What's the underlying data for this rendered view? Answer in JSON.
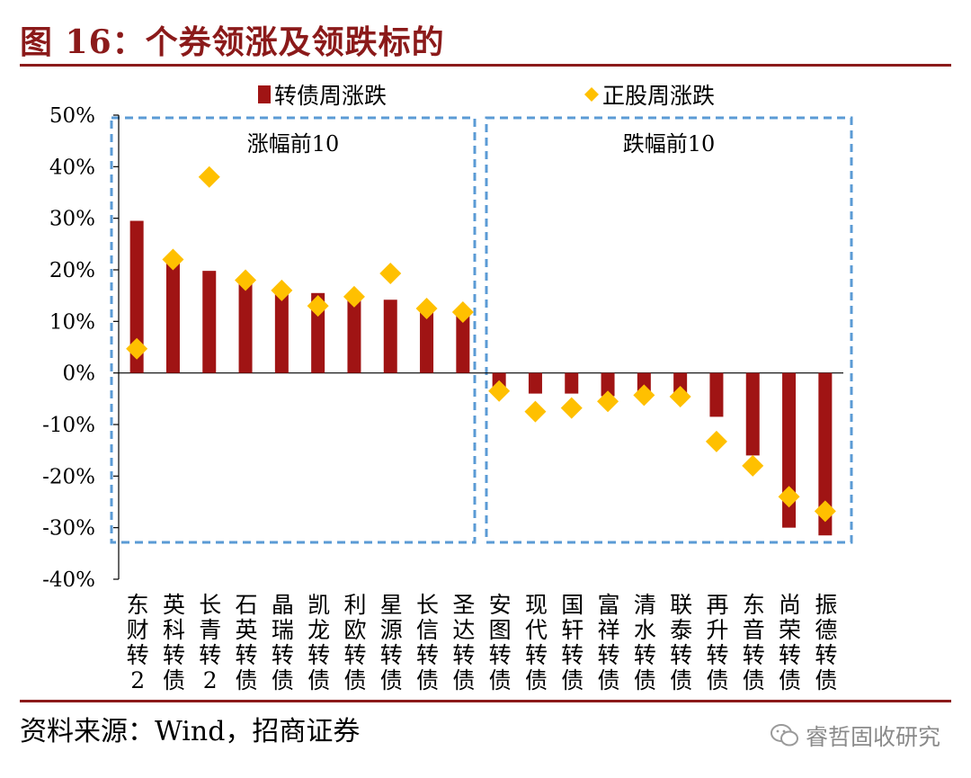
{
  "figure": {
    "title": "图 16：个券领涨及领跌标的",
    "source": "资料来源：Wind，招商证券",
    "watermark": "睿哲固收研究",
    "watermark_icon": "wechat-icon"
  },
  "colors": {
    "title": "#8B1A1A",
    "bar": "#A01414",
    "marker": "#FFC000",
    "box": "#5B9BD5",
    "axis": "#000000"
  },
  "chart_data": {
    "type": "bar",
    "title": "",
    "xlabel": "",
    "ylabel": "",
    "ylim": [
      -40,
      50
    ],
    "yticks": [
      50,
      40,
      30,
      20,
      10,
      0,
      -10,
      -20,
      -30,
      -40
    ],
    "ytick_labels": [
      "50%",
      "40%",
      "30%",
      "20%",
      "10%",
      "0%",
      "-10%",
      "-20%",
      "-30%",
      "-40%"
    ],
    "grid": false,
    "legend_position": "top",
    "categories": [
      "东财转2",
      "英科转债",
      "长青转2",
      "石英转债",
      "晶瑞转债",
      "凯龙转债",
      "利欧转债",
      "星源转债",
      "长信转债",
      "圣达转债",
      "安图转债",
      "现代转债",
      "国轩转债",
      "富祥转债",
      "清水转债",
      "联泰转债",
      "再升转债",
      "东音转债",
      "尚荣转债",
      "振德转债"
    ],
    "series": [
      {
        "name": "转债周涨跌",
        "kind": "bar",
        "values": [
          29.5,
          21.5,
          19.8,
          17.8,
          16.0,
          15.5,
          15.0,
          14.2,
          12.5,
          11.5,
          -3.5,
          -4.0,
          -4.0,
          -4.5,
          -4.5,
          -4.5,
          -8.5,
          -16.0,
          -30.0,
          -31.5
        ]
      },
      {
        "name": "正股周涨跌",
        "kind": "marker",
        "values": [
          4.7,
          22.0,
          38.0,
          18.0,
          16.0,
          13.0,
          14.8,
          19.3,
          12.5,
          11.8,
          -3.5,
          -7.5,
          -6.8,
          -5.5,
          -4.3,
          -4.6,
          -13.3,
          -18.0,
          -24.0,
          -26.8
        ]
      }
    ],
    "annotations": [
      {
        "label": "涨幅前10",
        "from_index": 0,
        "to_index": 9
      },
      {
        "label": "跌幅前10",
        "from_index": 10,
        "to_index": 19
      }
    ]
  }
}
